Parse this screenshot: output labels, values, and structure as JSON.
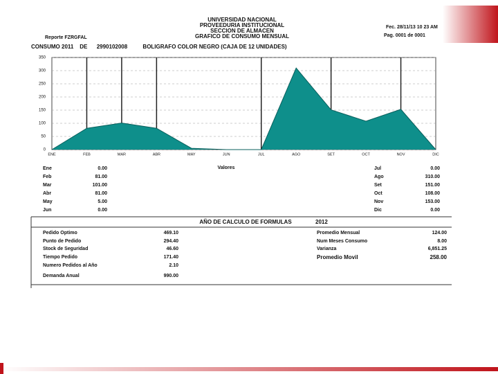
{
  "header": {
    "lines": [
      "UNIVERSIDAD NACIONAL",
      "PROVEEDURIA INSTITUCIONAL",
      "SECCION DE ALMACEN",
      "GRAFICO DE CONSUMO MENSUAL"
    ],
    "report": "Reporte FZRGFAL",
    "date": "Fec.  28/11/13 10 23 AM",
    "page": "Pag.  0001   de   0001",
    "subject": "CONSUMO 2011    DE      2990102008          BOLIGRAFO COLOR NEGRO (CAJA DE 12 UNIDADES)"
  },
  "chart_data": {
    "type": "area",
    "categories": [
      "ENE",
      "FEB",
      "MAR",
      "ABR",
      "MAY",
      "JUN",
      "JUL",
      "AGO",
      "SET",
      "OCT",
      "NOV",
      "DIC"
    ],
    "values": [
      0,
      81,
      101,
      81,
      5,
      0,
      0,
      310,
      151,
      108,
      153,
      0
    ],
    "color": "#0e8f8b",
    "ylim": [
      0,
      350
    ],
    "yticks": [
      0,
      50,
      100,
      150,
      200,
      250,
      300,
      350
    ],
    "grid": true
  },
  "values_table": {
    "title": "Valores",
    "left": [
      [
        "Ene",
        "0.00"
      ],
      [
        "Feb",
        "81.00"
      ],
      [
        "Mar",
        "101.00"
      ],
      [
        "Abr",
        "81.00"
      ],
      [
        "May",
        "5.00"
      ],
      [
        "Jun",
        "0.00"
      ]
    ],
    "right": [
      [
        "Jul",
        "0.00"
      ],
      [
        "Ago",
        "310.00"
      ],
      [
        "Set",
        "151.00"
      ],
      [
        "Oct",
        "108.00"
      ],
      [
        "Nov",
        "153.00"
      ],
      [
        "Dic",
        "0.00"
      ]
    ]
  },
  "formulas": {
    "title": "AÑO DE CALCULO DE FORMULAS",
    "year": "2012",
    "left": [
      [
        "Pedido Optimo",
        "469.10"
      ],
      [
        "Punto de Pedido",
        "294.40"
      ],
      [
        "Stock de Seguridad",
        "46.60"
      ],
      [
        "Tiempo Pedido",
        "171.40"
      ],
      [
        "Numero Pedidos al Año",
        "2.10"
      ],
      [
        "Demanda Anual",
        "990.00"
      ]
    ],
    "right": [
      [
        "Promedio Mensual",
        "124.00"
      ],
      [
        "Num Meses Consumo",
        "8.00"
      ],
      [
        "Varianza",
        "6,851.25"
      ],
      [
        "Promedio Movil",
        "258.00"
      ]
    ]
  }
}
